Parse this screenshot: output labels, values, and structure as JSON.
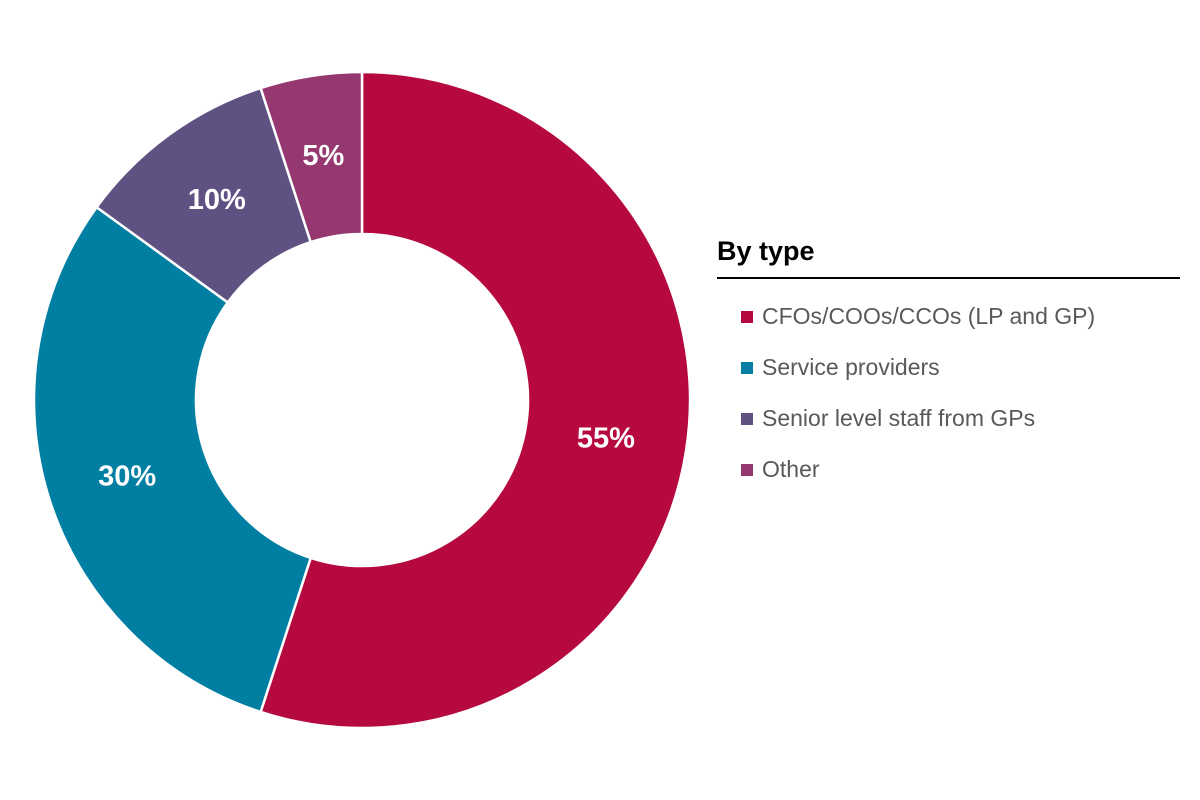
{
  "chart_data": {
    "type": "pie",
    "donut": true,
    "legend_title": "By type",
    "legend_position": "right",
    "slices": [
      {
        "label": "CFOs/COOs/CCOs (LP and GP)",
        "value": 55,
        "display": "55%",
        "color": "#B5093F"
      },
      {
        "label": "Service providers",
        "value": 30,
        "display": "30%",
        "color": "#007FA3"
      },
      {
        "label": "Senior level staff from GPs",
        "value": 10,
        "display": "10%",
        "color": "#5F5283"
      },
      {
        "label": "Other",
        "value": 5,
        "display": "5%",
        "color": "#94386F"
      }
    ]
  }
}
